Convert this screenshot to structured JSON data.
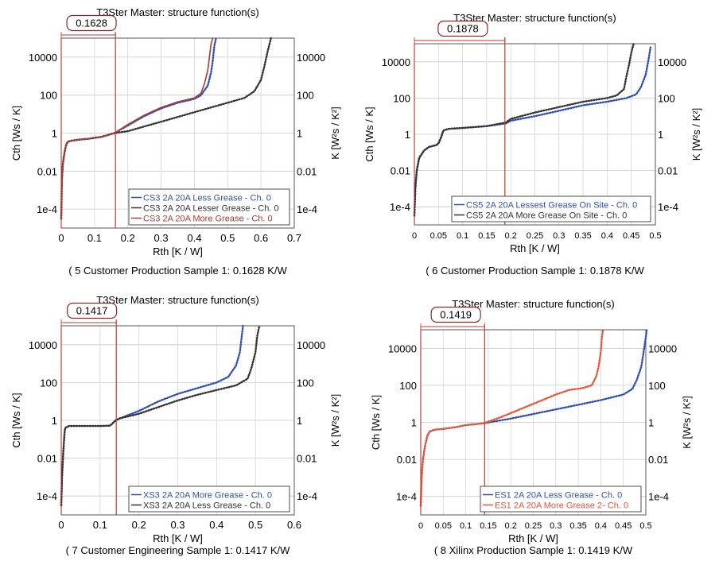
{
  "colors": {
    "blue": "#2f4fb5",
    "black": "#333333",
    "darkred": "#b03a2e",
    "red": "#e8553a",
    "marker": "#c0392b"
  },
  "chart_data": [
    {
      "type": "line",
      "title": "T3Ster Master: structure function(s)",
      "caption": "( 5 Customer Production Sample 1: 0.1628 K/W",
      "xlabel": "Rth [K / W]",
      "ylabel": "Cth [Ws / K]",
      "ylabel_right": "K [W²s / K²]",
      "xlim": [
        0,
        0.7
      ],
      "xticks": [
        "0",
        "0.1",
        "0.2",
        "0.3",
        "0.4",
        "0.5",
        "0.6",
        "0.7"
      ],
      "ylim_log10": [
        -5,
        5
      ],
      "yticks": [
        "1e-4",
        "0.01",
        "1",
        "100",
        "10000"
      ],
      "yticks_right": [
        "1e-4",
        "0.01",
        "1",
        "100",
        "10000"
      ],
      "marker": {
        "value": 0.1628,
        "label": "0.1628"
      },
      "legend_position": "bottom-right",
      "series": [
        {
          "name": "CS3 2A 20A Less Grease - Ch. 0",
          "color": "blue",
          "dotted": true,
          "points": [
            [
              0,
              -4.5
            ],
            [
              0.002,
              -2.5
            ],
            [
              0.005,
              -1.6
            ],
            [
              0.01,
              -1.0
            ],
            [
              0.015,
              -0.6
            ],
            [
              0.02,
              -0.45
            ],
            [
              0.03,
              -0.4
            ],
            [
              0.05,
              -0.35
            ],
            [
              0.08,
              -0.3
            ],
            [
              0.1,
              -0.25
            ],
            [
              0.12,
              -0.2
            ],
            [
              0.14,
              -0.1
            ],
            [
              0.16,
              0.0
            ],
            [
              0.18,
              0.2
            ],
            [
              0.2,
              0.4
            ],
            [
              0.25,
              0.9
            ],
            [
              0.3,
              1.3
            ],
            [
              0.35,
              1.6
            ],
            [
              0.4,
              1.8
            ],
            [
              0.42,
              2.0
            ],
            [
              0.44,
              2.5
            ],
            [
              0.45,
              3.2
            ],
            [
              0.455,
              3.8
            ],
            [
              0.46,
              4.6
            ],
            [
              0.465,
              5.0
            ]
          ]
        },
        {
          "name": "CS3 2A 20A Lesser Grease - Ch. 0",
          "color": "black",
          "dotted": true,
          "points": [
            [
              0,
              -4.5
            ],
            [
              0.002,
              -2.5
            ],
            [
              0.005,
              -1.6
            ],
            [
              0.01,
              -1.0
            ],
            [
              0.015,
              -0.6
            ],
            [
              0.02,
              -0.45
            ],
            [
              0.03,
              -0.4
            ],
            [
              0.05,
              -0.35
            ],
            [
              0.08,
              -0.3
            ],
            [
              0.1,
              -0.25
            ],
            [
              0.12,
              -0.2
            ],
            [
              0.14,
              -0.1
            ],
            [
              0.16,
              0.0
            ],
            [
              0.2,
              0.1
            ],
            [
              0.25,
              0.35
            ],
            [
              0.3,
              0.6
            ],
            [
              0.35,
              0.85
            ],
            [
              0.4,
              1.1
            ],
            [
              0.45,
              1.35
            ],
            [
              0.5,
              1.6
            ],
            [
              0.55,
              1.85
            ],
            [
              0.58,
              2.2
            ],
            [
              0.6,
              2.8
            ],
            [
              0.61,
              3.5
            ],
            [
              0.62,
              4.3
            ],
            [
              0.63,
              5.0
            ]
          ]
        },
        {
          "name": "CS3 2A 20A More Grease - Ch. 0",
          "color": "darkred",
          "dotted": false,
          "points": [
            [
              0,
              -4.5
            ],
            [
              0.002,
              -2.5
            ],
            [
              0.005,
              -1.6
            ],
            [
              0.01,
              -1.0
            ],
            [
              0.015,
              -0.6
            ],
            [
              0.02,
              -0.45
            ],
            [
              0.03,
              -0.4
            ],
            [
              0.05,
              -0.35
            ],
            [
              0.08,
              -0.3
            ],
            [
              0.1,
              -0.25
            ],
            [
              0.12,
              -0.2
            ],
            [
              0.14,
              -0.1
            ],
            [
              0.16,
              0.0
            ],
            [
              0.18,
              0.22
            ],
            [
              0.2,
              0.45
            ],
            [
              0.25,
              0.95
            ],
            [
              0.3,
              1.35
            ],
            [
              0.35,
              1.65
            ],
            [
              0.4,
              1.85
            ],
            [
              0.42,
              2.1
            ],
            [
              0.43,
              2.6
            ],
            [
              0.44,
              3.3
            ],
            [
              0.445,
              4.0
            ],
            [
              0.45,
              4.7
            ],
            [
              0.455,
              5.0
            ]
          ]
        }
      ]
    },
    {
      "type": "line",
      "title": "T3Ster Master: structure function(s)",
      "caption": "( 6 Customer Production Sample 1: 0.1878 K/W",
      "xlabel": "Rth [K / W]",
      "ylabel": "Cth [Ws / K]",
      "ylabel_right": "K [W²s / K²]",
      "xlim": [
        0,
        0.5
      ],
      "xticks": [
        "0",
        "0.05",
        "0.1",
        "0.15",
        "0.2",
        "0.25",
        "0.3",
        "0.35",
        "0.4",
        "0.45",
        "0.5"
      ],
      "ylim_log10": [
        -5,
        5
      ],
      "yticks": [
        "1e-4",
        "0.01",
        "1",
        "100",
        "10000"
      ],
      "yticks_right": [
        "1e-4",
        "0.01",
        "1",
        "100",
        "10000"
      ],
      "marker": {
        "value": 0.1878,
        "label": "0.1878"
      },
      "legend_position": "bottom-right",
      "series": [
        {
          "name": "CS5 2A 20A Lessest Grease On Site - Ch. 0",
          "color": "blue",
          "dotted": true,
          "points": [
            [
              0,
              -4.5
            ],
            [
              0.002,
              -3.0
            ],
            [
              0.005,
              -2.0
            ],
            [
              0.01,
              -1.3
            ],
            [
              0.02,
              -0.9
            ],
            [
              0.03,
              -0.7
            ],
            [
              0.045,
              -0.6
            ],
            [
              0.05,
              -0.5
            ],
            [
              0.055,
              -0.2
            ],
            [
              0.06,
              0.2
            ],
            [
              0.07,
              0.3
            ],
            [
              0.1,
              0.35
            ],
            [
              0.15,
              0.45
            ],
            [
              0.19,
              0.6
            ],
            [
              0.2,
              0.75
            ],
            [
              0.25,
              1.0
            ],
            [
              0.3,
              1.3
            ],
            [
              0.35,
              1.6
            ],
            [
              0.4,
              1.8
            ],
            [
              0.44,
              2.0
            ],
            [
              0.46,
              2.2
            ],
            [
              0.47,
              2.6
            ],
            [
              0.48,
              3.3
            ],
            [
              0.485,
              4.0
            ],
            [
              0.49,
              4.8
            ]
          ]
        },
        {
          "name": "CS5 2A 20A More Grease On Site - Ch. 0",
          "color": "black",
          "dotted": true,
          "points": [
            [
              0,
              -4.5
            ],
            [
              0.002,
              -3.0
            ],
            [
              0.005,
              -2.0
            ],
            [
              0.01,
              -1.3
            ],
            [
              0.02,
              -0.9
            ],
            [
              0.03,
              -0.7
            ],
            [
              0.045,
              -0.6
            ],
            [
              0.05,
              -0.5
            ],
            [
              0.055,
              -0.2
            ],
            [
              0.06,
              0.2
            ],
            [
              0.07,
              0.3
            ],
            [
              0.1,
              0.35
            ],
            [
              0.15,
              0.45
            ],
            [
              0.19,
              0.65
            ],
            [
              0.2,
              0.85
            ],
            [
              0.25,
              1.2
            ],
            [
              0.3,
              1.5
            ],
            [
              0.35,
              1.8
            ],
            [
              0.4,
              2.0
            ],
            [
              0.42,
              2.15
            ],
            [
              0.435,
              2.5
            ],
            [
              0.44,
              3.2
            ],
            [
              0.445,
              3.8
            ],
            [
              0.45,
              4.5
            ],
            [
              0.455,
              5.0
            ]
          ]
        }
      ]
    },
    {
      "type": "line",
      "title": "T3Ster Master: structure function(s)",
      "caption": "( 7 Customer Engineering Sample 1: 0.1417 K/W",
      "xlabel": "Rth [K / W]",
      "ylabel": "Cth [Ws / K]",
      "ylabel_right": "K [W²s / K²]",
      "xlim": [
        0,
        0.6
      ],
      "xticks": [
        "0",
        "0.1",
        "0.2",
        "0.3",
        "0.4",
        "0.5",
        "0.6"
      ],
      "ylim_log10": [
        -5,
        5
      ],
      "yticks": [
        "1e-4",
        "0.01",
        "1",
        "100",
        "10000"
      ],
      "yticks_right": [
        "1e-4",
        "0.01",
        "1",
        "100",
        "10000"
      ],
      "marker": {
        "value": 0.1417,
        "label": "0.1417"
      },
      "legend_position": "bottom-right",
      "series": [
        {
          "name": "XS3 2A 20A More Grease - Ch. 0",
          "color": "blue",
          "dotted": true,
          "points": [
            [
              0,
              -4.5
            ],
            [
              0.002,
              -3.0
            ],
            [
              0.005,
              -1.8
            ],
            [
              0.008,
              -0.8
            ],
            [
              0.01,
              -0.4
            ],
            [
              0.02,
              -0.3
            ],
            [
              0.05,
              -0.3
            ],
            [
              0.1,
              -0.3
            ],
            [
              0.125,
              -0.28
            ],
            [
              0.13,
              -0.2
            ],
            [
              0.14,
              0.0
            ],
            [
              0.15,
              0.1
            ],
            [
              0.2,
              0.5
            ],
            [
              0.25,
              1.0
            ],
            [
              0.3,
              1.4
            ],
            [
              0.35,
              1.7
            ],
            [
              0.4,
              2.0
            ],
            [
              0.43,
              2.3
            ],
            [
              0.45,
              2.9
            ],
            [
              0.46,
              3.6
            ],
            [
              0.465,
              4.5
            ],
            [
              0.468,
              5.0
            ]
          ]
        },
        {
          "name": "XS3 2A 20A Less Grease - Ch. 0",
          "color": "black",
          "dotted": true,
          "points": [
            [
              0,
              -4.5
            ],
            [
              0.002,
              -3.0
            ],
            [
              0.005,
              -1.8
            ],
            [
              0.008,
              -0.8
            ],
            [
              0.01,
              -0.4
            ],
            [
              0.02,
              -0.3
            ],
            [
              0.05,
              -0.3
            ],
            [
              0.1,
              -0.3
            ],
            [
              0.125,
              -0.28
            ],
            [
              0.13,
              -0.2
            ],
            [
              0.14,
              0.0
            ],
            [
              0.15,
              0.1
            ],
            [
              0.2,
              0.35
            ],
            [
              0.25,
              0.7
            ],
            [
              0.3,
              1.05
            ],
            [
              0.35,
              1.35
            ],
            [
              0.4,
              1.6
            ],
            [
              0.45,
              1.85
            ],
            [
              0.48,
              2.2
            ],
            [
              0.49,
              2.8
            ],
            [
              0.5,
              3.6
            ],
            [
              0.505,
              4.5
            ],
            [
              0.51,
              5.0
            ]
          ]
        }
      ]
    },
    {
      "type": "line",
      "title": "T3Ster Master: structure function(s)",
      "caption": "( 8 Xilinx Production Sample 1: 0.1419 K/W",
      "xlabel": "Rth [K / W]",
      "ylabel": "Cth [Ws / K]",
      "ylabel_right": "K [W²s / K²]",
      "xlim": [
        0,
        0.5
      ],
      "xticks": [
        "0",
        "0.05",
        "0.1",
        "0.15",
        "0.2",
        "0.25",
        "0.3",
        "0.35",
        "0.4",
        "0.45",
        "0.5"
      ],
      "ylim_log10": [
        -5,
        5
      ],
      "yticks": [
        "1e-4",
        "0.01",
        "1",
        "100",
        "10000"
      ],
      "yticks_right": [
        "1e-4",
        "0.01",
        "1",
        "100",
        "10000"
      ],
      "marker": {
        "value": 0.1419,
        "label": "0.1419"
      },
      "legend_position": "bottom-right",
      "series": [
        {
          "name": "ES1 2A 20A Less Grease - Ch. 0",
          "color": "blue",
          "dotted": true,
          "points": [
            [
              0,
              -4.5
            ],
            [
              0.002,
              -3.0
            ],
            [
              0.005,
              -2.0
            ],
            [
              0.01,
              -1.2
            ],
            [
              0.015,
              -0.7
            ],
            [
              0.02,
              -0.5
            ],
            [
              0.03,
              -0.4
            ],
            [
              0.05,
              -0.35
            ],
            [
              0.08,
              -0.25
            ],
            [
              0.1,
              -0.15
            ],
            [
              0.14,
              -0.05
            ],
            [
              0.2,
              0.2
            ],
            [
              0.25,
              0.45
            ],
            [
              0.3,
              0.7
            ],
            [
              0.35,
              0.95
            ],
            [
              0.4,
              1.2
            ],
            [
              0.45,
              1.5
            ],
            [
              0.47,
              1.8
            ],
            [
              0.48,
              2.3
            ],
            [
              0.49,
              3.0
            ],
            [
              0.495,
              3.8
            ],
            [
              0.5,
              4.6
            ],
            [
              0.502,
              5.0
            ]
          ]
        },
        {
          "name": "ES1 2A 20A More Grease 2- Ch. 0",
          "color": "red",
          "dotted": true,
          "points": [
            [
              0,
              -4.5
            ],
            [
              0.002,
              -3.0
            ],
            [
              0.005,
              -2.0
            ],
            [
              0.01,
              -1.2
            ],
            [
              0.015,
              -0.7
            ],
            [
              0.02,
              -0.5
            ],
            [
              0.03,
              -0.4
            ],
            [
              0.05,
              -0.35
            ],
            [
              0.08,
              -0.25
            ],
            [
              0.1,
              -0.15
            ],
            [
              0.14,
              -0.05
            ],
            [
              0.18,
              0.3
            ],
            [
              0.22,
              0.7
            ],
            [
              0.26,
              1.1
            ],
            [
              0.3,
              1.5
            ],
            [
              0.33,
              1.75
            ],
            [
              0.36,
              1.85
            ],
            [
              0.38,
              2.0
            ],
            [
              0.39,
              2.5
            ],
            [
              0.395,
              3.0
            ],
            [
              0.4,
              3.8
            ],
            [
              0.402,
              4.5
            ],
            [
              0.405,
              5.0
            ]
          ]
        }
      ]
    }
  ]
}
